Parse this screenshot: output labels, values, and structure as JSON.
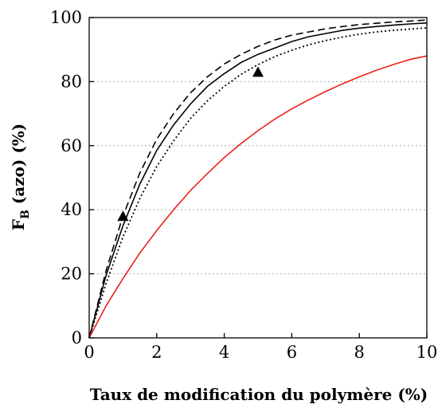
{
  "chart_data": {
    "type": "line",
    "title": "",
    "xlabel": "Taux de modification du polymère (%)",
    "ylabel": {
      "main": "F",
      "subscript": "B",
      "rest": " (azo) (%)"
    },
    "xlim": [
      0,
      10
    ],
    "ylim": [
      0,
      100
    ],
    "xticks": [
      0,
      2,
      4,
      6,
      8,
      10
    ],
    "yticks": [
      0,
      20,
      40,
      60,
      80,
      100
    ],
    "grid": "horizontal dotted",
    "legend": "none",
    "series": [
      {
        "style": "dashed",
        "color": "#000000",
        "x": [
          0,
          0.5,
          1,
          1.5,
          2,
          2.5,
          3,
          3.5,
          4,
          4.5,
          5,
          5.5,
          6,
          6.5,
          7,
          7.5,
          8,
          8.5,
          9,
          9.5,
          10
        ],
        "y": [
          0,
          21,
          38,
          51.5,
          62,
          70,
          76.5,
          81.5,
          85.5,
          88.5,
          91,
          93,
          94.5,
          95.5,
          96.5,
          97.2,
          97.8,
          98.2,
          98.6,
          98.9,
          99.2
        ]
      },
      {
        "style": "solid",
        "color": "#000000",
        "x": [
          0,
          0.5,
          1,
          1.5,
          2,
          2.5,
          3,
          3.5,
          4,
          4.5,
          5,
          5.5,
          6,
          6.5,
          7,
          7.5,
          8,
          8.5,
          9,
          9.5,
          10
        ],
        "y": [
          0,
          19.5,
          35,
          48,
          58.5,
          66.5,
          73,
          78.5,
          82.5,
          86,
          88.5,
          90.5,
          92.5,
          94,
          95,
          96,
          96.7,
          97.2,
          97.6,
          98,
          98.3
        ]
      },
      {
        "style": "dotted",
        "color": "#000000",
        "x": [
          0,
          0.5,
          1,
          1.5,
          2,
          2.5,
          3,
          3.5,
          4,
          4.5,
          5,
          5.5,
          6,
          6.5,
          7,
          7.5,
          8,
          8.5,
          9,
          9.5,
          10
        ],
        "y": [
          0,
          17,
          31.5,
          43.5,
          53.5,
          61.5,
          68.5,
          74,
          78.5,
          82.3,
          85.3,
          87.8,
          89.8,
          91.5,
          92.8,
          93.9,
          94.8,
          95.5,
          96,
          96.4,
          96.8
        ]
      },
      {
        "style": "solid",
        "color": "#e8201a",
        "x": [
          0,
          0.5,
          1,
          1.5,
          2,
          2.5,
          3,
          3.5,
          4,
          4.5,
          5,
          5.5,
          6,
          6.5,
          7,
          7.5,
          8,
          8.5,
          9,
          9.5,
          10
        ],
        "y": [
          0,
          10,
          18.5,
          26.5,
          33.5,
          40,
          46,
          51.3,
          56.3,
          60.7,
          64.7,
          68.3,
          71.5,
          74.3,
          76.9,
          79.3,
          81.5,
          83.5,
          85.3,
          86.9,
          88
        ]
      }
    ],
    "markers": [
      {
        "shape": "triangle",
        "x": 1,
        "y": 38
      },
      {
        "shape": "triangle",
        "x": 5,
        "y": 83
      }
    ]
  }
}
